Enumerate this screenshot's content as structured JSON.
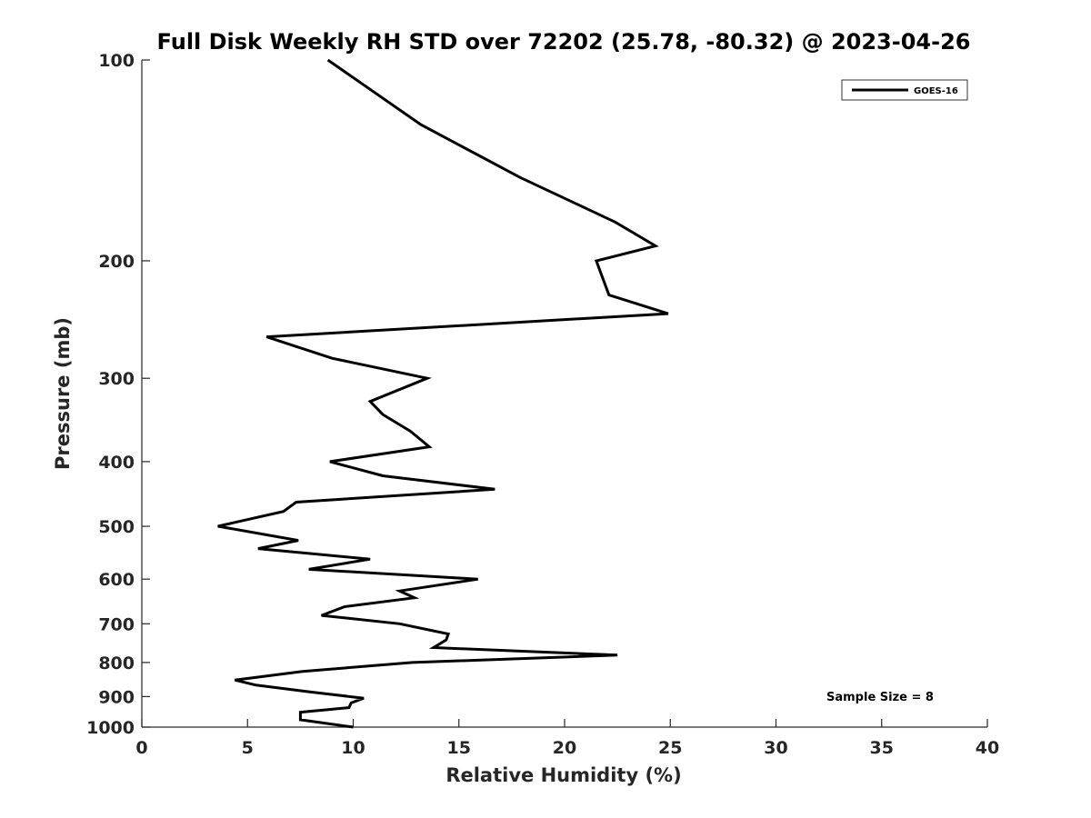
{
  "chart_data": {
    "type": "line",
    "title": "Full Disk Weekly RH STD over 72202 (25.78, -80.32) @ 2023-04-26",
    "xlabel": "Relative Humidity (%)",
    "ylabel": "Pressure (mb)",
    "xlim": [
      0,
      40
    ],
    "ylim": [
      100,
      1000
    ],
    "yscale": "log",
    "yaxis_inverted": true,
    "xticks": [
      0,
      5,
      10,
      15,
      20,
      25,
      30,
      35,
      40
    ],
    "yticks": [
      100,
      200,
      300,
      400,
      500,
      600,
      700,
      800,
      900,
      1000
    ],
    "grid": false,
    "legend": {
      "placement": "top-right",
      "entries": [
        "GOES-16"
      ]
    },
    "annotation": "Sample Size = 8",
    "series": [
      {
        "name": "GOES-16",
        "color": "#000000",
        "points": [
          [
            8.8,
            100
          ],
          [
            13.2,
            125
          ],
          [
            17.9,
            150
          ],
          [
            22.4,
            175
          ],
          [
            24.3,
            190
          ],
          [
            21.5,
            200
          ],
          [
            22.1,
            225
          ],
          [
            24.9,
            240
          ],
          [
            5.9,
            260
          ],
          [
            9.0,
            280
          ],
          [
            13.5,
            300
          ],
          [
            10.8,
            325
          ],
          [
            11.4,
            340
          ],
          [
            12.7,
            360
          ],
          [
            13.6,
            380
          ],
          [
            8.9,
            400
          ],
          [
            11.4,
            420
          ],
          [
            16.7,
            440
          ],
          [
            7.3,
            460
          ],
          [
            6.7,
            475
          ],
          [
            3.6,
            500
          ],
          [
            7.4,
            525
          ],
          [
            5.5,
            540
          ],
          [
            10.8,
            560
          ],
          [
            7.9,
            580
          ],
          [
            15.9,
            600
          ],
          [
            12.2,
            625
          ],
          [
            12.9,
            640
          ],
          [
            9.6,
            660
          ],
          [
            8.5,
            680
          ],
          [
            12.2,
            700
          ],
          [
            14.5,
            725
          ],
          [
            14.4,
            740
          ],
          [
            13.8,
            760
          ],
          [
            22.5,
            780
          ],
          [
            12.8,
            800
          ],
          [
            7.6,
            825
          ],
          [
            4.4,
            850
          ],
          [
            5.4,
            865
          ],
          [
            7.9,
            885
          ],
          [
            10.5,
            905
          ],
          [
            9.9,
            920
          ],
          [
            9.8,
            935
          ],
          [
            7.5,
            950
          ],
          [
            7.5,
            975
          ],
          [
            10.0,
            1000
          ]
        ]
      }
    ]
  }
}
